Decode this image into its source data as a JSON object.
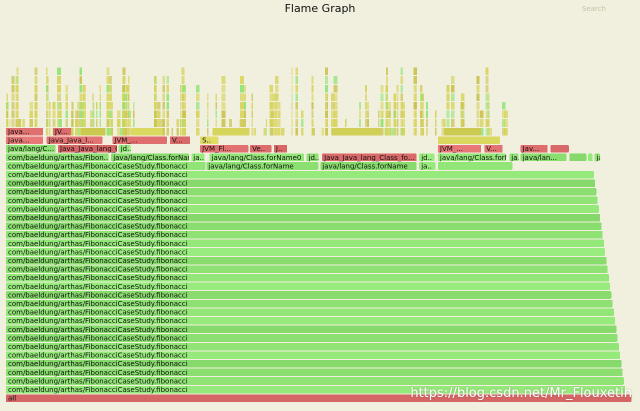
{
  "header": {
    "title": "Flame Graph",
    "search_label": "Search"
  },
  "watermark": "https://blog.csdn.net/Mr_Flouxetin",
  "colors": {
    "background": "#f1efde",
    "green": "#8fe374",
    "green_dark": "#7fd264",
    "red": "#e07070",
    "yellow": "#d6d35a",
    "olive": "#c9c24d"
  },
  "chart_data": {
    "type": "flame-graph",
    "title": "Flame Graph",
    "xlabel": "",
    "ylabel": "",
    "root": "all",
    "frames": [
      {
        "depth": 0,
        "start": 0.0,
        "width": 1.0,
        "label": "all",
        "color": "red"
      },
      {
        "depth": 1,
        "start": 0.0,
        "width": 0.99,
        "label": "com/baeldung/arthas/FibonacciCaseStudy.fibonacci",
        "color": "green"
      },
      {
        "depth": 2,
        "start": 0.0,
        "width": 0.988,
        "label": "com/baeldung/arthas/FibonacciCaseStudy.fibonacci",
        "color": "green"
      },
      {
        "depth": 3,
        "start": 0.0,
        "width": 0.986,
        "label": "com/baeldung/arthas/FibonacciCaseStudy.fibonacci",
        "color": "green"
      },
      {
        "depth": 4,
        "start": 0.0,
        "width": 0.984,
        "label": "com/baeldung/arthas/FibonacciCaseStudy.fibonacci",
        "color": "green"
      },
      {
        "depth": 5,
        "start": 0.0,
        "width": 0.982,
        "label": "com/baeldung/arthas/FibonacciCaseStudy.fibonacci",
        "color": "green"
      },
      {
        "depth": 6,
        "start": 0.0,
        "width": 0.98,
        "label": "com/baeldung/arthas/FibonacciCaseStudy.fibonacci",
        "color": "green"
      },
      {
        "depth": 7,
        "start": 0.0,
        "width": 0.978,
        "label": "com/baeldung/arthas/FibonacciCaseStudy.fibonacci",
        "color": "green"
      },
      {
        "depth": 8,
        "start": 0.0,
        "width": 0.976,
        "label": "com/baeldung/arthas/FibonacciCaseStudy.fibonacci",
        "color": "green"
      },
      {
        "depth": 9,
        "start": 0.0,
        "width": 0.974,
        "label": "com/baeldung/arthas/FibonacciCaseStudy.fibonacci",
        "color": "green"
      },
      {
        "depth": 10,
        "start": 0.0,
        "width": 0.972,
        "label": "com/baeldung/arthas/FibonacciCaseStudy.fibonacci",
        "color": "green"
      },
      {
        "depth": 11,
        "start": 0.0,
        "width": 0.97,
        "label": "com/baeldung/arthas/FibonacciCaseStudy.fibonacci",
        "color": "green"
      },
      {
        "depth": 12,
        "start": 0.0,
        "width": 0.968,
        "label": "com/baeldung/arthas/FibonacciCaseStudy.fibonacci",
        "color": "green"
      },
      {
        "depth": 13,
        "start": 0.0,
        "width": 0.966,
        "label": "com/baeldung/arthas/FibonacciCaseStudy.fibonacci",
        "color": "green"
      },
      {
        "depth": 14,
        "start": 0.0,
        "width": 0.964,
        "label": "com/baeldung/arthas/FibonacciCaseStudy.fibonacci",
        "color": "green"
      },
      {
        "depth": 15,
        "start": 0.0,
        "width": 0.962,
        "label": "com/baeldung/arthas/FibonacciCaseStudy.fibonacci",
        "color": "green"
      },
      {
        "depth": 16,
        "start": 0.0,
        "width": 0.96,
        "label": "com/baeldung/arthas/FibonacciCaseStudy.fibonacci",
        "color": "green"
      },
      {
        "depth": 17,
        "start": 0.0,
        "width": 0.958,
        "label": "com/baeldung/arthas/FibonacciCaseStudy.fibonacci",
        "color": "green"
      },
      {
        "depth": 18,
        "start": 0.0,
        "width": 0.956,
        "label": "com/baeldung/arthas/FibonacciCaseStudy.fibonacci",
        "color": "green"
      },
      {
        "depth": 19,
        "start": 0.0,
        "width": 0.954,
        "label": "com/baeldung/arthas/FibonacciCaseStudy.fibonacci",
        "color": "green"
      },
      {
        "depth": 20,
        "start": 0.0,
        "width": 0.952,
        "label": "com/baeldung/arthas/FibonacciCaseStudy.fibonacci",
        "color": "green"
      },
      {
        "depth": 21,
        "start": 0.0,
        "width": 0.95,
        "label": "com/baeldung/arthas/FibonacciCaseStudy.fibonacci",
        "color": "green"
      },
      {
        "depth": 22,
        "start": 0.0,
        "width": 0.948,
        "label": "com/baeldung/arthas/FibonacciCaseStudy.fibonacci",
        "color": "green"
      },
      {
        "depth": 23,
        "start": 0.0,
        "width": 0.946,
        "label": "com/baeldung/arthas/FibonacciCaseStudy.fibonacci",
        "color": "green"
      },
      {
        "depth": 24,
        "start": 0.0,
        "width": 0.944,
        "label": "com/baeldung/arthas/FibonacciCaseStudy.fibonacci",
        "color": "green"
      },
      {
        "depth": 25,
        "start": 0.0,
        "width": 0.942,
        "label": "com/baeldung/arthas/FibonacciCaseStudy.fibonacci",
        "color": "green"
      },
      {
        "depth": 26,
        "start": 0.0,
        "width": 0.94,
        "label": "com/baeldung/arthas/FibonacciCaseStudy.fibonacci",
        "color": "green"
      },
      {
        "depth": 27,
        "start": 0.0,
        "width": 0.32,
        "label": "com/baeldung/arthas/FibonacciCaseStudy.fibonacci",
        "color": "green"
      },
      {
        "depth": 27,
        "start": 0.32,
        "width": 0.18,
        "label": "java/lang/Class.forName",
        "color": "green"
      },
      {
        "depth": 27,
        "start": 0.502,
        "width": 0.155,
        "label": "java/lang/Class.forName",
        "color": "green"
      },
      {
        "depth": 27,
        "start": 0.66,
        "width": 0.027,
        "label": "ja..",
        "color": "green"
      },
      {
        "depth": 27,
        "start": 0.69,
        "width": 0.12,
        "label": "",
        "color": "green"
      },
      {
        "depth": 28,
        "start": 0.0,
        "width": 0.165,
        "label": "com/baeldung/arthas/Fibon...",
        "color": "green"
      },
      {
        "depth": 28,
        "start": 0.168,
        "width": 0.125,
        "label": "java/lang/Class.forName",
        "color": "green"
      },
      {
        "depth": 28,
        "start": 0.296,
        "width": 0.022,
        "label": "ja..",
        "color": "green"
      },
      {
        "depth": 28,
        "start": 0.325,
        "width": 0.152,
        "label": "java/lang/Class.forName0",
        "color": "green"
      },
      {
        "depth": 28,
        "start": 0.48,
        "width": 0.02,
        "label": "jd..",
        "color": "green"
      },
      {
        "depth": 28,
        "start": 0.505,
        "width": 0.152,
        "label": "Java_Java_lang_Class_fo...",
        "color": "red"
      },
      {
        "depth": 28,
        "start": 0.66,
        "width": 0.025,
        "label": "jd..",
        "color": "green"
      },
      {
        "depth": 28,
        "start": 0.69,
        "width": 0.11,
        "label": "java/lang/Class.forName0",
        "color": "green"
      },
      {
        "depth": 28,
        "start": 0.804,
        "width": 0.016,
        "label": "ja..",
        "color": "green"
      },
      {
        "depth": 28,
        "start": 0.822,
        "width": 0.074,
        "label": "java/lan...",
        "color": "green"
      },
      {
        "depth": 28,
        "start": 0.9,
        "width": 0.028,
        "label": "",
        "color": "green"
      },
      {
        "depth": 28,
        "start": 0.93,
        "width": 0.008,
        "label": "",
        "color": "green"
      },
      {
        "depth": 28,
        "start": 0.94,
        "width": 0.01,
        "label": "ja..",
        "color": "green"
      },
      {
        "depth": 29,
        "start": 0.0,
        "width": 0.08,
        "label": "java/lang/C...",
        "color": "green"
      },
      {
        "depth": 29,
        "start": 0.083,
        "width": 0.095,
        "label": "Java_Java_lang_Class_...",
        "color": "red"
      },
      {
        "depth": 29,
        "start": 0.18,
        "width": 0.02,
        "label": "jd..",
        "color": "green"
      },
      {
        "depth": 29,
        "start": 0.31,
        "width": 0.078,
        "label": "JVM_Fl...",
        "color": "red"
      },
      {
        "depth": 29,
        "start": 0.39,
        "width": 0.035,
        "label": "Ve..",
        "color": "red"
      },
      {
        "depth": 29,
        "start": 0.428,
        "width": 0.022,
        "label": "J..",
        "color": "red"
      },
      {
        "depth": 29,
        "start": 0.69,
        "width": 0.07,
        "label": "JVM_...",
        "color": "red"
      },
      {
        "depth": 29,
        "start": 0.764,
        "width": 0.03,
        "label": "V...",
        "color": "red"
      },
      {
        "depth": 29,
        "start": 0.822,
        "width": 0.044,
        "label": "Jav...",
        "color": "red"
      },
      {
        "depth": 29,
        "start": 0.87,
        "width": 0.03,
        "label": "",
        "color": "red"
      },
      {
        "depth": 30,
        "start": 0.0,
        "width": 0.06,
        "label": "Java...",
        "color": "red"
      },
      {
        "depth": 30,
        "start": 0.065,
        "width": 0.09,
        "label": "Java_Java_l...",
        "color": "red"
      },
      {
        "depth": 30,
        "start": 0.17,
        "width": 0.088,
        "label": "JVM_...",
        "color": "red"
      },
      {
        "depth": 30,
        "start": 0.262,
        "width": 0.033,
        "label": "V...",
        "color": "red"
      },
      {
        "depth": 30,
        "start": 0.31,
        "width": 0.03,
        "label": "S..",
        "color": "yellow"
      },
      {
        "depth": 30,
        "start": 0.69,
        "width": 0.1,
        "label": "",
        "color": "yellow"
      },
      {
        "depth": 31,
        "start": 0.0,
        "width": 0.06,
        "label": "Java...",
        "color": "red"
      },
      {
        "depth": 31,
        "start": 0.075,
        "width": 0.03,
        "label": "JV...",
        "color": "red"
      },
      {
        "depth": 31,
        "start": 0.12,
        "width": 0.04,
        "label": "",
        "color": "yellow"
      },
      {
        "depth": 31,
        "start": 0.2,
        "width": 0.05,
        "label": "",
        "color": "yellow"
      },
      {
        "depth": 31,
        "start": 0.33,
        "width": 0.06,
        "label": "",
        "color": "yellow"
      },
      {
        "depth": 31,
        "start": 0.52,
        "width": 0.08,
        "label": "",
        "color": "yellow"
      },
      {
        "depth": 31,
        "start": 0.7,
        "width": 0.06,
        "label": "",
        "color": "yellow"
      }
    ]
  }
}
